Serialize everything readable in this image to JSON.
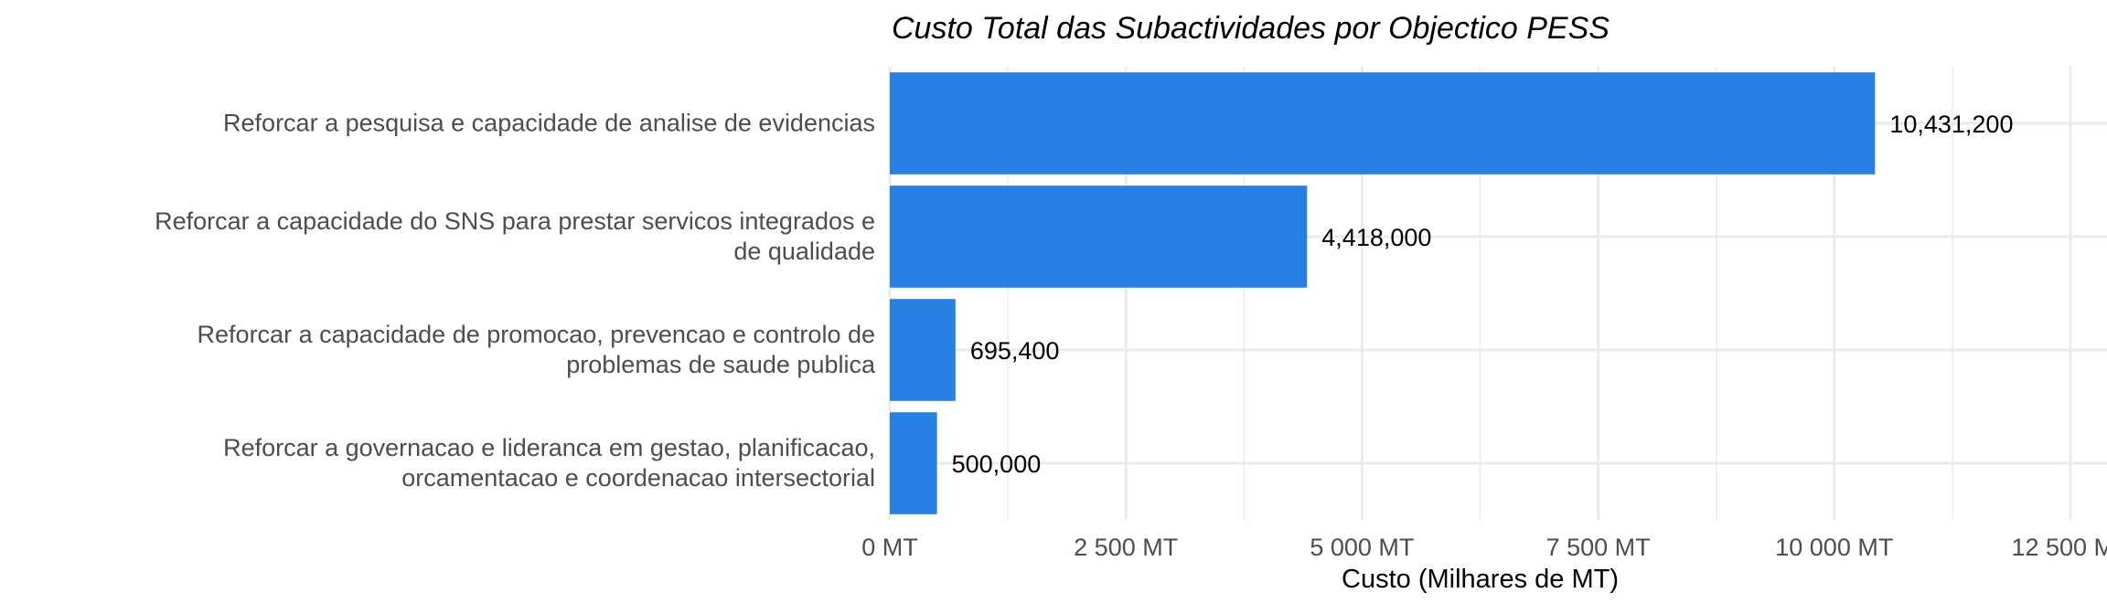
{
  "chart_data": {
    "type": "bar",
    "orientation": "horizontal",
    "title": "Custo Total das Subactividades por Objectico PESS",
    "xlabel": "Custo (Milhares de MT)",
    "ylabel": "",
    "categories": [
      [
        "Reforcar a pesquisa e capacidade de analise de evidencias"
      ],
      [
        "Reforcar a capacidade do SNS para prestar servicos integrados e",
        "de qualidade"
      ],
      [
        "Reforcar a capacidade de promocao, prevencao e controlo de",
        "problemas de saude publica"
      ],
      [
        "Reforcar a governacao e lideranca em gestao, planificacao,",
        "orcamentacao e coordenacao intersectorial"
      ]
    ],
    "values": [
      10431200,
      4418000,
      695400,
      500000
    ],
    "data_labels": [
      "10,431,200",
      "4,418,000",
      "695,400",
      "500,000"
    ],
    "xlim": [
      0,
      12500
    ],
    "x_ticks": [
      0,
      2500,
      5000,
      7500,
      10000,
      12500
    ],
    "x_tick_labels": [
      "0 MT",
      "2 500 MT",
      "5 000 MT",
      "7 500 MT",
      "10 000 MT",
      "12 500 MT"
    ],
    "grid": true,
    "legend": "none",
    "colors": {
      "bar": "#2980E3",
      "grid": "#EBEBEB"
    }
  }
}
